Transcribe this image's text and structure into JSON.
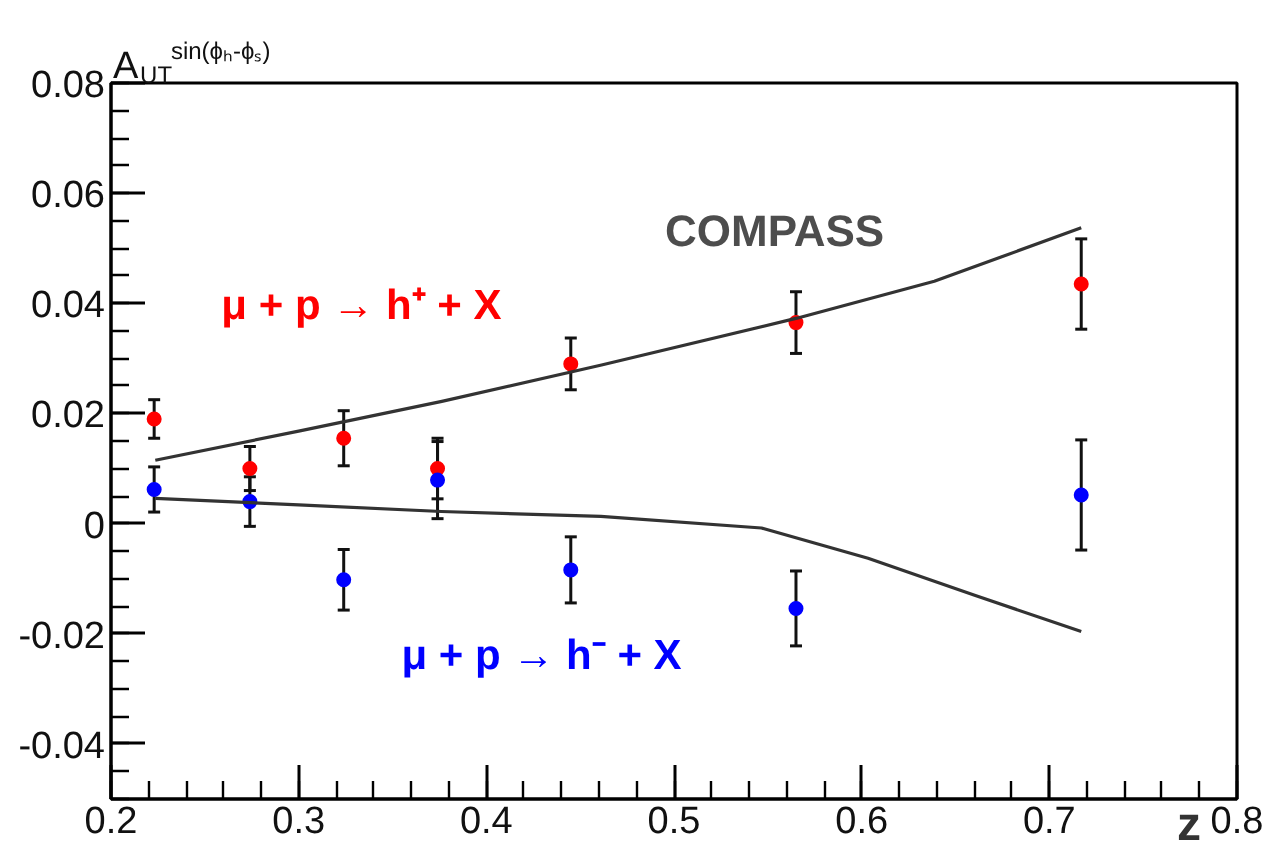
{
  "chart_data": {
    "type": "scatter",
    "xlabel": "z",
    "ylabel": "A$_{UT}$$^{sin(ϕₕ-ϕₛ)}$",
    "xlim": [
      0.2,
      0.8
    ],
    "ylim": [
      -0.05,
      0.08
    ],
    "xticks": [
      0.2,
      0.3,
      0.4,
      0.5,
      0.6,
      0.7,
      0.8
    ],
    "yticks": [
      -0.04,
      -0.02,
      0,
      0.02,
      0.04,
      0.06,
      0.08
    ],
    "annotations": [
      "COMPASS"
    ],
    "marker": "circle",
    "series": [
      {
        "name": "μ + p → h⁺ + X",
        "color": "#ff0000",
        "x": [
          0.223,
          0.274,
          0.324,
          0.374,
          0.445,
          0.565,
          0.717
        ],
        "values": [
          0.019,
          0.01,
          0.0155,
          0.01,
          0.029,
          0.0365,
          0.0435
        ],
        "errors": [
          0.0035,
          0.004,
          0.005,
          0.0055,
          0.0047,
          0.0056,
          0.0082
        ]
      },
      {
        "name": "μ + p → h⁻ + X",
        "color": "#0000ff",
        "x": [
          0.223,
          0.274,
          0.324,
          0.374,
          0.445,
          0.565,
          0.717
        ],
        "values": [
          0.0062,
          0.004,
          -0.0102,
          0.0079,
          -0.0084,
          -0.0154,
          0.0052
        ],
        "errors": [
          0.0041,
          0.0045,
          0.0055,
          0.007,
          0.006,
          0.0068,
          0.01
        ]
      },
      {
        "type": "line",
        "marker": "none",
        "color": "#333333",
        "x": [
          0.2236,
          0.3,
          0.3763,
          0.4614,
          0.5655,
          0.6387,
          0.717
        ],
        "values": [
          0.0115,
          0.0168,
          0.0222,
          0.0288,
          0.0373,
          0.044,
          0.0537
        ]
      },
      {
        "type": "line",
        "marker": "none",
        "color": "#333333",
        "x": [
          0.2236,
          0.3,
          0.376,
          0.461,
          0.5466,
          0.6034,
          0.6602,
          0.717
        ],
        "values": [
          0.0046,
          0.0034,
          0.0022,
          0.0013,
          -0.0008,
          -0.0063,
          -0.013,
          -0.0196
        ]
      }
    ]
  }
}
